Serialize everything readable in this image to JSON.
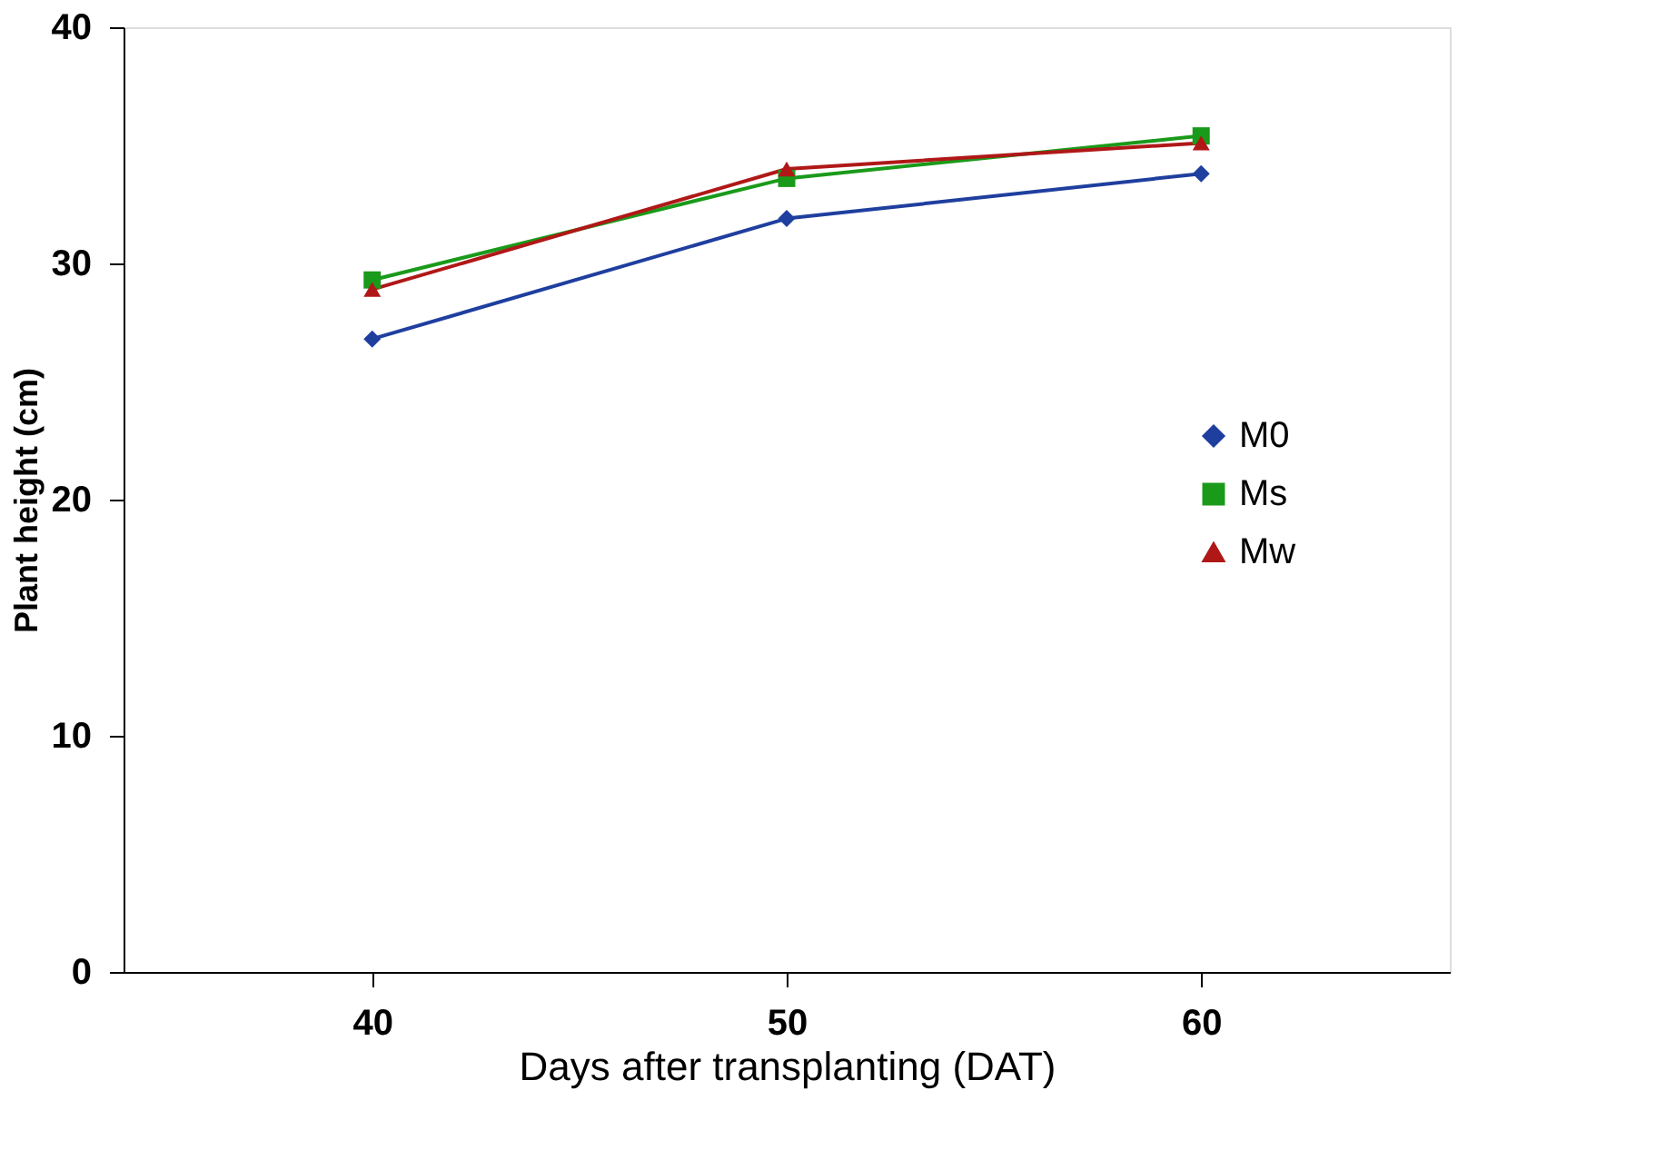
{
  "chart_data": {
    "type": "line",
    "xlabel": "Days after transplanting (DAT)",
    "ylabel": "Plant height (cm)",
    "categories": [
      "40",
      "50",
      "60"
    ],
    "series": [
      {
        "name": "M0",
        "color": "#1f3f9f",
        "marker": "diamond",
        "values": [
          26.8,
          31.9,
          33.8
        ]
      },
      {
        "name": "Ms",
        "color": "#1a9a1a",
        "marker": "square",
        "values": [
          29.3,
          33.6,
          35.4
        ]
      },
      {
        "name": "Mw",
        "color": "#b01818",
        "marker": "triangle",
        "values": [
          28.9,
          34.0,
          35.1
        ]
      }
    ],
    "ylim": [
      0,
      40
    ],
    "yticks": [
      0,
      10,
      20,
      30,
      40
    ],
    "grid": false,
    "legend": "right",
    "line_style": "solid"
  }
}
